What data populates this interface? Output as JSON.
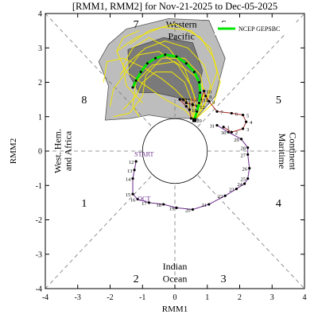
{
  "title": "[RMM1, RMM2] for Nov-21-2025 to Dec-05-2025",
  "chart_data": {
    "type": "scatter",
    "xlabel": "RMM1",
    "ylabel": "RMM2",
    "xlim": [
      -4,
      4
    ],
    "ylim": [
      -4,
      4
    ],
    "xticks": [
      -4,
      -3,
      -2,
      -1,
      0,
      1,
      2,
      3,
      4
    ],
    "yticks": [
      -4,
      -3,
      -2,
      -1,
      0,
      1,
      2,
      3,
      4
    ],
    "phases": [
      {
        "label": "1",
        "x": -2.8,
        "y": -1.5
      },
      {
        "label": "2",
        "x": -1.2,
        "y": -3.7
      },
      {
        "label": "3",
        "x": 1.5,
        "y": -3.7
      },
      {
        "label": "4",
        "x": 3.2,
        "y": -1.5
      },
      {
        "label": "5",
        "x": 3.2,
        "y": 1.5
      },
      {
        "label": "6",
        "x": 1.5,
        "y": 3.7
      },
      {
        "label": "7",
        "x": -1.2,
        "y": 3.7
      },
      {
        "label": "8",
        "x": -2.8,
        "y": 1.5
      }
    ],
    "regions": {
      "top": [
        "Western",
        "Pacific"
      ],
      "bottom": [
        "Indian",
        "Ocean"
      ],
      "left": [
        "West. Hem.",
        "and Africa"
      ],
      "right": [
        "Maritime",
        "Continent"
      ]
    },
    "legend": {
      "label": "NCEP GEPSBC",
      "color": "#00e600",
      "position": "top-right"
    },
    "month_labels": [
      {
        "text": "START",
        "x": -0.95,
        "y": -0.15,
        "color": "#6a2a8a"
      },
      {
        "text": "OCT",
        "x": -0.95,
        "y": -1.45,
        "color": "#6a2a8a"
      },
      {
        "text": "NOV",
        "x": 0.7,
        "y": 1.4,
        "color": "#a52a2a"
      }
    ],
    "series": [
      {
        "name": "October",
        "color": "#6a2a8a",
        "points": [
          {
            "day": "12",
            "x": -1.2,
            "y": -0.3
          },
          {
            "day": "13",
            "x": -1.25,
            "y": -0.55
          },
          {
            "day": "14",
            "x": -1.3,
            "y": -0.8
          },
          {
            "day": "15",
            "x": -1.3,
            "y": -1.25
          },
          {
            "day": "16",
            "x": -1.15,
            "y": -1.4
          },
          {
            "day": "17",
            "x": -0.8,
            "y": -1.5
          },
          {
            "day": "18",
            "x": -0.35,
            "y": -1.55
          },
          {
            "day": "19",
            "x": 0.05,
            "y": -1.65
          },
          {
            "day": "20",
            "x": 0.55,
            "y": -1.7
          },
          {
            "day": "21",
            "x": 1.05,
            "y": -1.55
          },
          {
            "day": "22",
            "x": 1.55,
            "y": -1.3
          },
          {
            "day": "23",
            "x": 1.9,
            "y": -1.1
          },
          {
            "day": "24",
            "x": 2.15,
            "y": -0.95
          },
          {
            "day": "25",
            "x": 2.25,
            "y": -0.8
          },
          {
            "day": "26",
            "x": 2.3,
            "y": -0.5
          },
          {
            "day": "27",
            "x": 2.25,
            "y": -0.1
          },
          {
            "day": "28",
            "x": 2.25,
            "y": 0.1
          },
          {
            "day": "29",
            "x": 2.05,
            "y": 0.35
          },
          {
            "day": "30",
            "x": 1.65,
            "y": 0.55
          },
          {
            "day": "31",
            "x": 1.3,
            "y": 0.75
          }
        ]
      },
      {
        "name": "November",
        "color": "#a52a2a",
        "points": [
          {
            "day": "1",
            "x": 1.5,
            "y": 0.7
          },
          {
            "day": "2",
            "x": 1.75,
            "y": 0.55
          },
          {
            "day": "3",
            "x": 2.1,
            "y": 0.65
          },
          {
            "day": "4",
            "x": 2.2,
            "y": 0.85
          },
          {
            "day": "5",
            "x": 2.1,
            "y": 1.05
          },
          {
            "day": "6",
            "x": 1.75,
            "y": 1.1
          },
          {
            "day": "7",
            "x": 1.3,
            "y": 1.15
          },
          {
            "day": "8",
            "x": 1.05,
            "y": 1.45
          },
          {
            "day": "9",
            "x": 0.95,
            "y": 1.6
          },
          {
            "day": "10",
            "x": 0.9,
            "y": 1.75
          },
          {
            "day": "11",
            "x": 0.8,
            "y": 1.5
          },
          {
            "day": "12",
            "x": 0.7,
            "y": 1.3
          },
          {
            "day": "13",
            "x": 0.55,
            "y": 1.35
          },
          {
            "day": "14",
            "x": 0.35,
            "y": 1.4
          },
          {
            "day": "15",
            "x": 0.25,
            "y": 1.5
          },
          {
            "day": "16",
            "x": 0.15,
            "y": 1.5
          },
          {
            "day": "17",
            "x": 0.35,
            "y": 1.3
          },
          {
            "day": "18",
            "x": 0.45,
            "y": 1.2
          },
          {
            "day": "19",
            "x": 0.5,
            "y": 0.95
          },
          {
            "day": "20",
            "x": 0.6,
            "y": 0.9
          }
        ]
      }
    ],
    "forecast_mean": {
      "color": "#00e600",
      "points": [
        {
          "x": 0.6,
          "y": 0.9
        },
        {
          "x": 0.68,
          "y": 1.15
        },
        {
          "x": 0.75,
          "y": 1.4
        },
        {
          "x": 0.78,
          "y": 1.7
        },
        {
          "x": 0.75,
          "y": 2.0
        },
        {
          "x": 0.6,
          "y": 2.3
        },
        {
          "x": 0.35,
          "y": 2.55
        },
        {
          "x": 0.05,
          "y": 2.75
        },
        {
          "x": -0.3,
          "y": 2.8
        },
        {
          "x": -0.6,
          "y": 2.7
        },
        {
          "x": -0.85,
          "y": 2.55
        },
        {
          "x": -1.05,
          "y": 2.3
        },
        {
          "x": -1.2,
          "y": 2.05
        },
        {
          "x": -1.3,
          "y": 1.85
        }
      ]
    },
    "forecast_spread_outer": [
      {
        "x": -1.5,
        "y": 3.55
      },
      {
        "x": -0.2,
        "y": 3.85
      },
      {
        "x": 1.05,
        "y": 3.8
      },
      {
        "x": 1.55,
        "y": 2.7
      },
      {
        "x": 1.25,
        "y": 1.6
      },
      {
        "x": 0.65,
        "y": 0.95
      },
      {
        "x": -0.15,
        "y": 0.95
      },
      {
        "x": -0.8,
        "y": 1.05
      },
      {
        "x": -1.35,
        "y": 0.95
      },
      {
        "x": -2.15,
        "y": 0.9
      },
      {
        "x": -2.05,
        "y": 1.9
      },
      {
        "x": -2.35,
        "y": 2.6
      },
      {
        "x": -2.05,
        "y": 3.1
      }
    ],
    "forecast_spread_inner": [
      {
        "x": -1.45,
        "y": 2.95
      },
      {
        "x": -0.35,
        "y": 3.3
      },
      {
        "x": 0.55,
        "y": 3.15
      },
      {
        "x": 0.85,
        "y": 2.35
      },
      {
        "x": 0.7,
        "y": 1.45
      },
      {
        "x": 0.1,
        "y": 1.55
      },
      {
        "x": -0.6,
        "y": 1.7
      },
      {
        "x": -1.1,
        "y": 1.7
      },
      {
        "x": -1.4,
        "y": 2.2
      }
    ],
    "ensemble_members": [
      [
        {
          "x": 0.6,
          "y": 0.9
        },
        {
          "x": 0.9,
          "y": 1.3
        },
        {
          "x": 1.1,
          "y": 1.9
        },
        {
          "x": 0.9,
          "y": 2.5
        },
        {
          "x": 0.4,
          "y": 3.0
        },
        {
          "x": -0.3,
          "y": 3.2
        },
        {
          "x": -0.9,
          "y": 3.0
        },
        {
          "x": -1.4,
          "y": 2.6
        },
        {
          "x": -1.7,
          "y": 2.2
        }
      ],
      [
        {
          "x": 0.6,
          "y": 0.9
        },
        {
          "x": 0.5,
          "y": 1.5
        },
        {
          "x": 0.3,
          "y": 2.0
        },
        {
          "x": -0.1,
          "y": 2.3
        },
        {
          "x": -0.6,
          "y": 2.3
        },
        {
          "x": -1.0,
          "y": 2.0
        },
        {
          "x": -1.2,
          "y": 1.6
        },
        {
          "x": -1.6,
          "y": 1.2
        }
      ],
      [
        {
          "x": 0.6,
          "y": 0.9
        },
        {
          "x": 1.0,
          "y": 1.5
        },
        {
          "x": 1.3,
          "y": 2.3
        },
        {
          "x": 1.1,
          "y": 3.0
        },
        {
          "x": 0.5,
          "y": 3.5
        },
        {
          "x": -0.4,
          "y": 3.6
        },
        {
          "x": -1.2,
          "y": 3.3
        },
        {
          "x": -1.8,
          "y": 2.9
        }
      ],
      [
        {
          "x": 0.6,
          "y": 0.9
        },
        {
          "x": 0.7,
          "y": 1.3
        },
        {
          "x": 0.5,
          "y": 1.9
        },
        {
          "x": 0.1,
          "y": 2.5
        },
        {
          "x": -0.5,
          "y": 2.9
        },
        {
          "x": -1.1,
          "y": 2.8
        },
        {
          "x": -1.5,
          "y": 2.3
        },
        {
          "x": -1.9,
          "y": 1.8
        },
        {
          "x": -2.0,
          "y": 1.3
        }
      ],
      [
        {
          "x": 0.6,
          "y": 0.9
        },
        {
          "x": 0.8,
          "y": 1.2
        },
        {
          "x": 0.9,
          "y": 1.8
        },
        {
          "x": 0.6,
          "y": 2.2
        },
        {
          "x": 0.0,
          "y": 2.6
        },
        {
          "x": -0.7,
          "y": 2.5
        },
        {
          "x": -1.2,
          "y": 2.0
        },
        {
          "x": -1.3,
          "y": 1.3
        },
        {
          "x": -1.1,
          "y": 1.0
        }
      ],
      [
        {
          "x": 0.6,
          "y": 0.9
        },
        {
          "x": 0.4,
          "y": 1.4
        },
        {
          "x": 0.0,
          "y": 1.8
        },
        {
          "x": -0.4,
          "y": 2.1
        },
        {
          "x": -0.9,
          "y": 2.4
        },
        {
          "x": -1.6,
          "y": 2.7
        },
        {
          "x": -2.1,
          "y": 2.6
        },
        {
          "x": -2.2,
          "y": 2.0
        }
      ],
      [
        {
          "x": 0.6,
          "y": 0.9
        },
        {
          "x": 1.2,
          "y": 1.4
        },
        {
          "x": 1.4,
          "y": 2.0
        },
        {
          "x": 1.2,
          "y": 2.7
        },
        {
          "x": 0.8,
          "y": 3.3
        },
        {
          "x": 0.0,
          "y": 3.7
        },
        {
          "x": -0.8,
          "y": 3.5
        },
        {
          "x": -1.4,
          "y": 3.1
        }
      ],
      [
        {
          "x": 0.6,
          "y": 0.9
        },
        {
          "x": 0.6,
          "y": 1.6
        },
        {
          "x": 0.3,
          "y": 2.4
        },
        {
          "x": -0.2,
          "y": 3.0
        },
        {
          "x": -0.8,
          "y": 3.3
        },
        {
          "x": -1.3,
          "y": 3.0
        },
        {
          "x": -1.6,
          "y": 2.5
        },
        {
          "x": -1.5,
          "y": 1.9
        },
        {
          "x": -1.0,
          "y": 1.4
        }
      ],
      [
        {
          "x": 0.6,
          "y": 0.9
        },
        {
          "x": 0.9,
          "y": 1.6
        },
        {
          "x": 0.8,
          "y": 2.2
        },
        {
          "x": 0.3,
          "y": 2.7
        },
        {
          "x": -0.4,
          "y": 2.7
        },
        {
          "x": -0.9,
          "y": 2.2
        },
        {
          "x": -1.0,
          "y": 1.6
        },
        {
          "x": -1.4,
          "y": 1.1
        },
        {
          "x": -1.9,
          "y": 1.0
        }
      ],
      [
        {
          "x": 0.6,
          "y": 0.9
        },
        {
          "x": 0.3,
          "y": 1.2
        },
        {
          "x": -0.3,
          "y": 1.5
        },
        {
          "x": -0.9,
          "y": 1.9
        },
        {
          "x": -1.5,
          "y": 2.3
        },
        {
          "x": -1.8,
          "y": 2.9
        },
        {
          "x": -1.6,
          "y": 3.3
        },
        {
          "x": -1.1,
          "y": 3.5
        }
      ]
    ]
  }
}
